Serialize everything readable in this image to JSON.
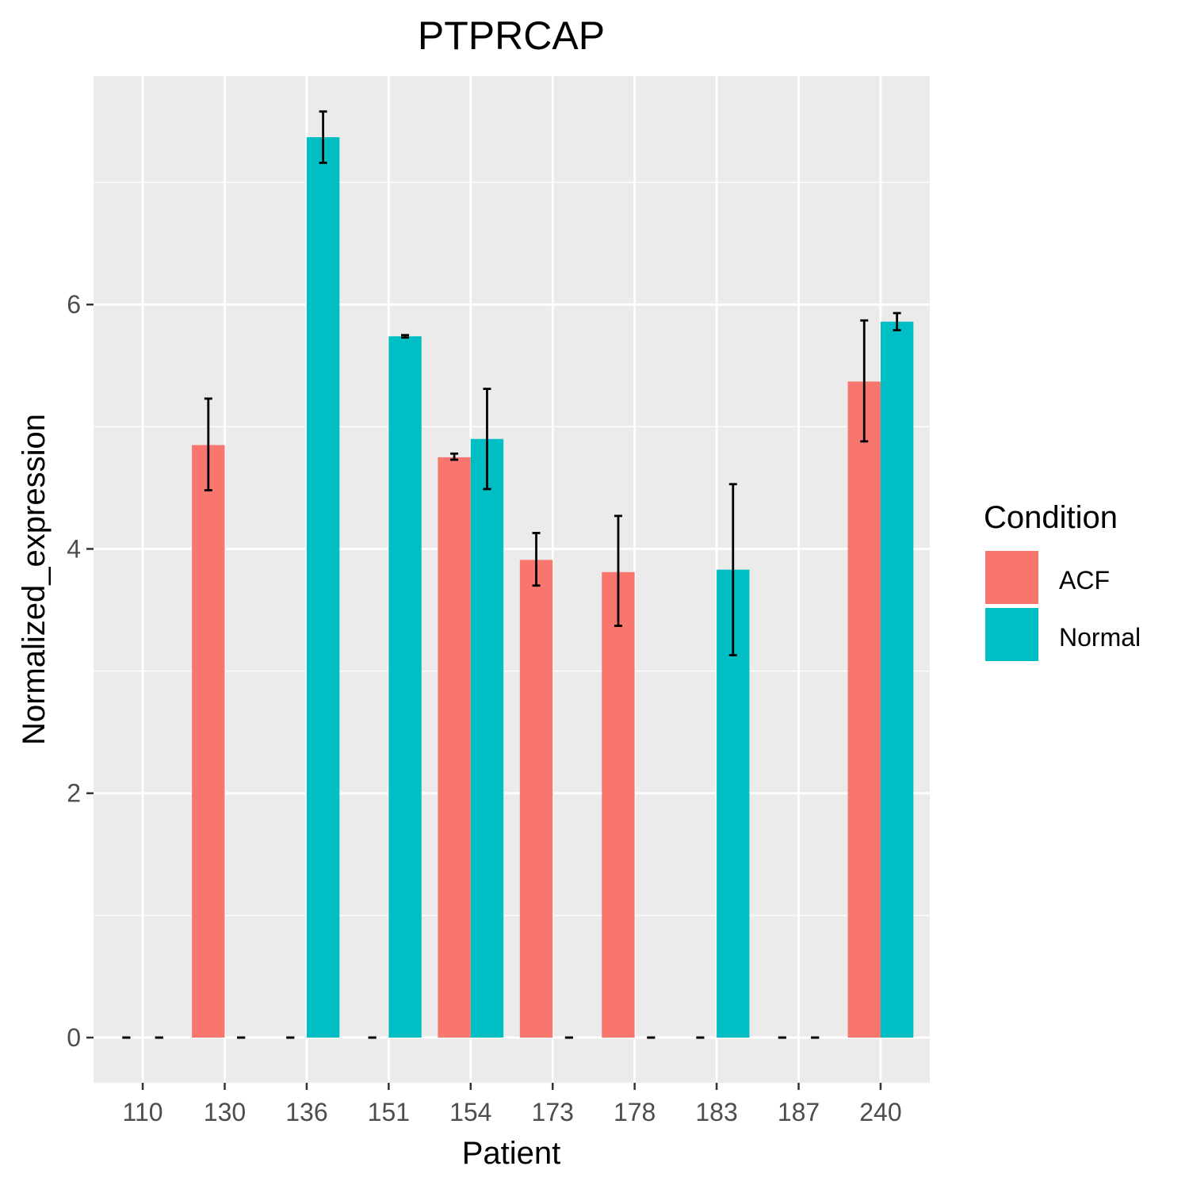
{
  "chart_data": {
    "type": "bar",
    "title": "PTPRCAP",
    "xlabel": "Patient",
    "ylabel": "Normalized_expression",
    "categories": [
      "110",
      "130",
      "136",
      "151",
      "154",
      "173",
      "178",
      "183",
      "187",
      "240"
    ],
    "ylim": [
      -0.37,
      7.87
    ],
    "yticks": [
      0,
      2,
      4,
      6
    ],
    "grid": true,
    "series": [
      {
        "name": "ACF",
        "color": "#F8766D",
        "values": [
          0,
          4.85,
          0,
          0,
          4.75,
          3.91,
          3.81,
          0,
          0,
          5.37
        ],
        "err_low": [
          0,
          4.48,
          0,
          0,
          4.73,
          3.7,
          3.37,
          0,
          0,
          4.88
        ],
        "err_high": [
          0,
          5.23,
          0,
          0,
          4.78,
          4.13,
          4.27,
          0,
          0,
          5.87
        ]
      },
      {
        "name": "Normal",
        "color": "#00BFC4",
        "values": [
          0,
          0,
          7.37,
          5.74,
          4.9,
          0,
          0,
          3.83,
          0,
          5.86
        ],
        "err_low": [
          0,
          0,
          7.16,
          5.73,
          4.49,
          0,
          0,
          3.13,
          0,
          5.79
        ],
        "err_high": [
          0,
          0,
          7.58,
          5.75,
          5.31,
          0,
          0,
          4.53,
          0,
          5.93
        ]
      }
    ],
    "legend": {
      "title": "Condition",
      "placement": "right"
    }
  }
}
